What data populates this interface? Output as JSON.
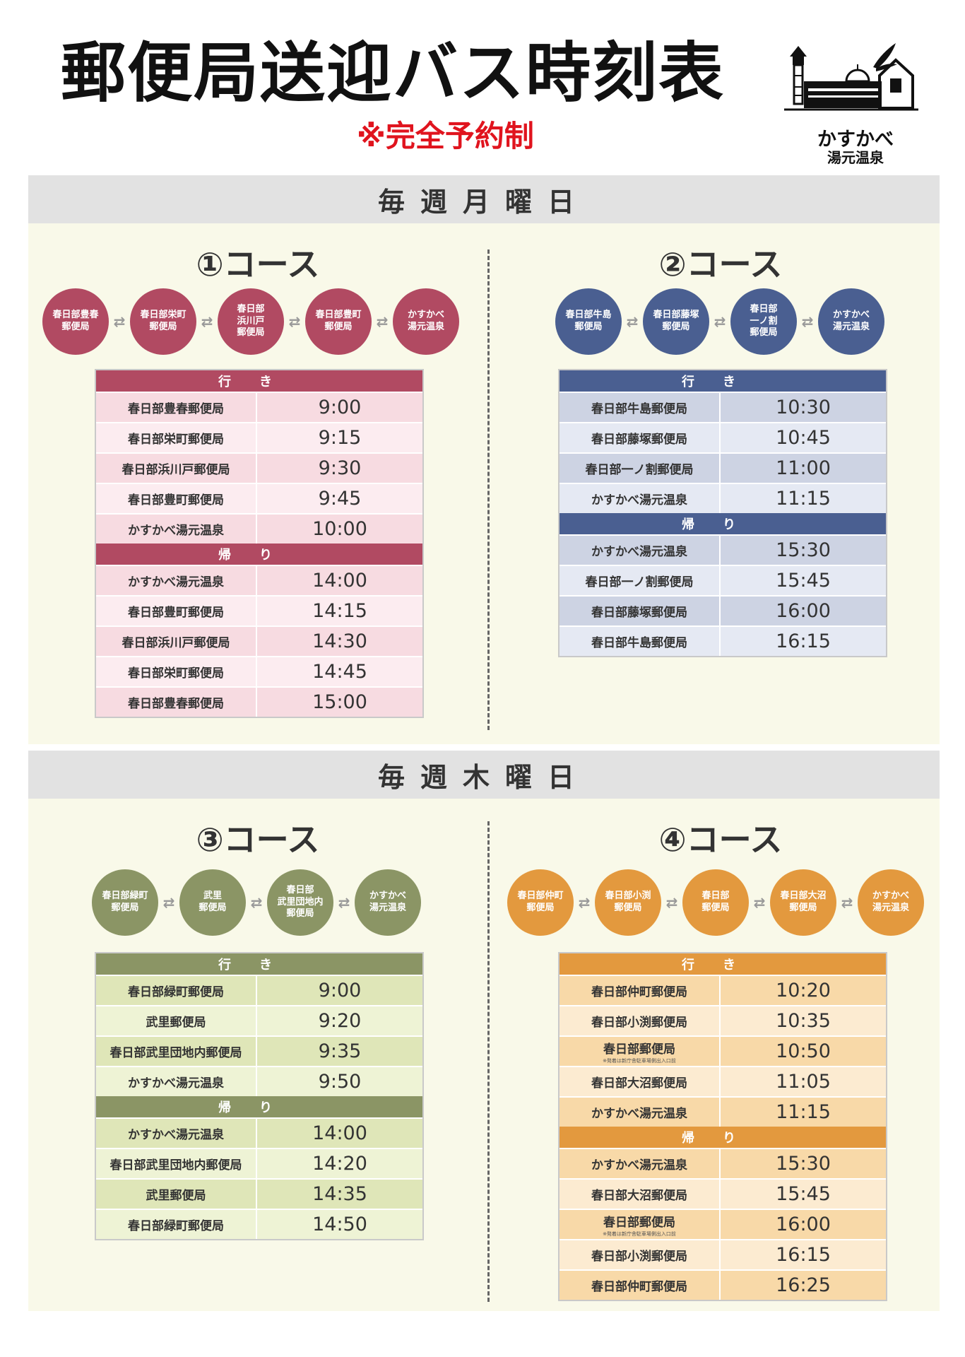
{
  "header": {
    "title": "郵便局送迎バス時刻表",
    "subtitle": "※完全予約制",
    "logo_name": "かすかべ",
    "logo_sub": "湯元温泉"
  },
  "colors": {
    "c1": "#b14a62",
    "c2": "#4a5f91",
    "c3": "#8b9565",
    "c4": "#e3993e"
  },
  "monday": {
    "label": "毎週月曜日",
    "c1": {
      "title": "①コース",
      "stops": [
        "春日部豊春\n郵便局",
        "春日部栄町\n郵便局",
        "春日部\n浜川戸\n郵便局",
        "春日部豊町\n郵便局",
        "かすかべ\n湯元温泉"
      ],
      "out_label": "行き",
      "out": [
        {
          "s": "春日部豊春郵便局",
          "t": "9:00"
        },
        {
          "s": "春日部栄町郵便局",
          "t": "9:15"
        },
        {
          "s": "春日部浜川戸郵便局",
          "t": "9:30"
        },
        {
          "s": "春日部豊町郵便局",
          "t": "9:45"
        },
        {
          "s": "かすかべ湯元温泉",
          "t": "10:00"
        }
      ],
      "ret_label": "帰り",
      "ret": [
        {
          "s": "かすかべ湯元温泉",
          "t": "14:00"
        },
        {
          "s": "春日部豊町郵便局",
          "t": "14:15"
        },
        {
          "s": "春日部浜川戸郵便局",
          "t": "14:30"
        },
        {
          "s": "春日部栄町郵便局",
          "t": "14:45"
        },
        {
          "s": "春日部豊春郵便局",
          "t": "15:00"
        }
      ]
    },
    "c2": {
      "title": "②コース",
      "stops": [
        "春日部牛島\n郵便局",
        "春日部藤塚\n郵便局",
        "春日部\n一ノ割\n郵便局",
        "かすかべ\n湯元温泉"
      ],
      "out_label": "行き",
      "out": [
        {
          "s": "春日部牛島郵便局",
          "t": "10:30"
        },
        {
          "s": "春日部藤塚郵便局",
          "t": "10:45"
        },
        {
          "s": "春日部一ノ割郵便局",
          "t": "11:00"
        },
        {
          "s": "かすかべ湯元温泉",
          "t": "11:15"
        }
      ],
      "ret_label": "帰り",
      "ret": [
        {
          "s": "かすかべ湯元温泉",
          "t": "15:30"
        },
        {
          "s": "春日部一ノ割郵便局",
          "t": "15:45"
        },
        {
          "s": "春日部藤塚郵便局",
          "t": "16:00"
        },
        {
          "s": "春日部牛島郵便局",
          "t": "16:15"
        }
      ]
    }
  },
  "thursday": {
    "label": "毎週木曜日",
    "c3": {
      "title": "③コース",
      "stops": [
        "春日部緑町\n郵便局",
        "武里\n郵便局",
        "春日部\n武里団地内\n郵便局",
        "かすかべ\n湯元温泉"
      ],
      "out_label": "行き",
      "out": [
        {
          "s": "春日部緑町郵便局",
          "t": "9:00"
        },
        {
          "s": "武里郵便局",
          "t": "9:20"
        },
        {
          "s": "春日部武里団地内郵便局",
          "t": "9:35"
        },
        {
          "s": "かすかべ湯元温泉",
          "t": "9:50"
        }
      ],
      "ret_label": "帰り",
      "ret": [
        {
          "s": "かすかべ湯元温泉",
          "t": "14:00"
        },
        {
          "s": "春日部武里団地内郵便局",
          "t": "14:20"
        },
        {
          "s": "武里郵便局",
          "t": "14:35"
        },
        {
          "s": "春日部緑町郵便局",
          "t": "14:50"
        }
      ]
    },
    "c4": {
      "title": "④コース",
      "stops": [
        "春日部仲町\n郵便局",
        "春日部小渕\n郵便局",
        "春日部\n郵便局",
        "春日部大沼\n郵便局",
        "かすかべ\n湯元温泉"
      ],
      "out_label": "行き",
      "out": [
        {
          "s": "春日部仲町郵便局",
          "t": "10:20"
        },
        {
          "s": "春日部小渕郵便局",
          "t": "10:35"
        },
        {
          "s": "春日部郵便局",
          "note": "※発着は新庁舎駐車場側出入口前",
          "t": "10:50"
        },
        {
          "s": "春日部大沼郵便局",
          "t": "11:05"
        },
        {
          "s": "かすかべ湯元温泉",
          "t": "11:15"
        }
      ],
      "ret_label": "帰り",
      "ret": [
        {
          "s": "かすかべ湯元温泉",
          "t": "15:30"
        },
        {
          "s": "春日部大沼郵便局",
          "t": "15:45"
        },
        {
          "s": "春日部郵便局",
          "note": "※発着は新庁舎駐車場側出入口前",
          "t": "16:00"
        },
        {
          "s": "春日部小渕郵便局",
          "t": "16:15"
        },
        {
          "s": "春日部仲町郵便局",
          "t": "16:25"
        }
      ]
    }
  }
}
